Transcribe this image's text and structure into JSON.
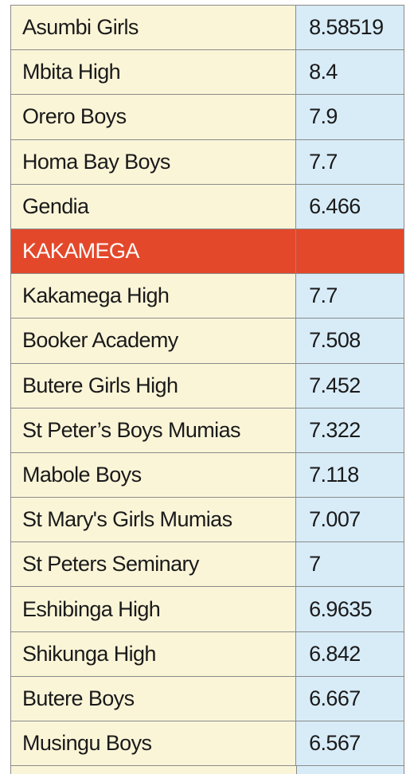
{
  "rows": [
    {
      "name": "Asumbi Girls",
      "score": "8.58519"
    },
    {
      "name": "Mbita High",
      "score": "8.4"
    },
    {
      "name": "Orero Boys",
      "score": "7.9"
    },
    {
      "name": "Homa Bay Boys",
      "score": "7.7"
    },
    {
      "name": "Gendia",
      "score": "6.466"
    },
    {
      "name": "KAKAMEGA",
      "score": "",
      "header": true
    },
    {
      "name": "Kakamega High",
      "score": "7.7"
    },
    {
      "name": "Booker Academy",
      "score": "7.508"
    },
    {
      "name": "Butere Girls High",
      "score": "7.452"
    },
    {
      "name": "St Peter’s Boys Mumias",
      "score": "7.322"
    },
    {
      "name": "Mabole Boys",
      "score": "7.118"
    },
    {
      "name": "St Mary's Girls Mumias",
      "score": "7.007"
    },
    {
      "name": "St Peters Seminary",
      "score": "7"
    },
    {
      "name": "Eshibinga High",
      "score": "6.9635"
    },
    {
      "name": "Shikunga High",
      "score": "6.842"
    },
    {
      "name": "Butere Boys",
      "score": "6.667"
    },
    {
      "name": "Musingu Boys",
      "score": "6.567"
    }
  ],
  "colors": {
    "name_cell_bg": "#fbf5d8",
    "score_cell_bg": "#d8ecf8",
    "section_header_bg": "#e4482a",
    "section_header_text": "#ffffff",
    "border": "#8a8a8a"
  }
}
